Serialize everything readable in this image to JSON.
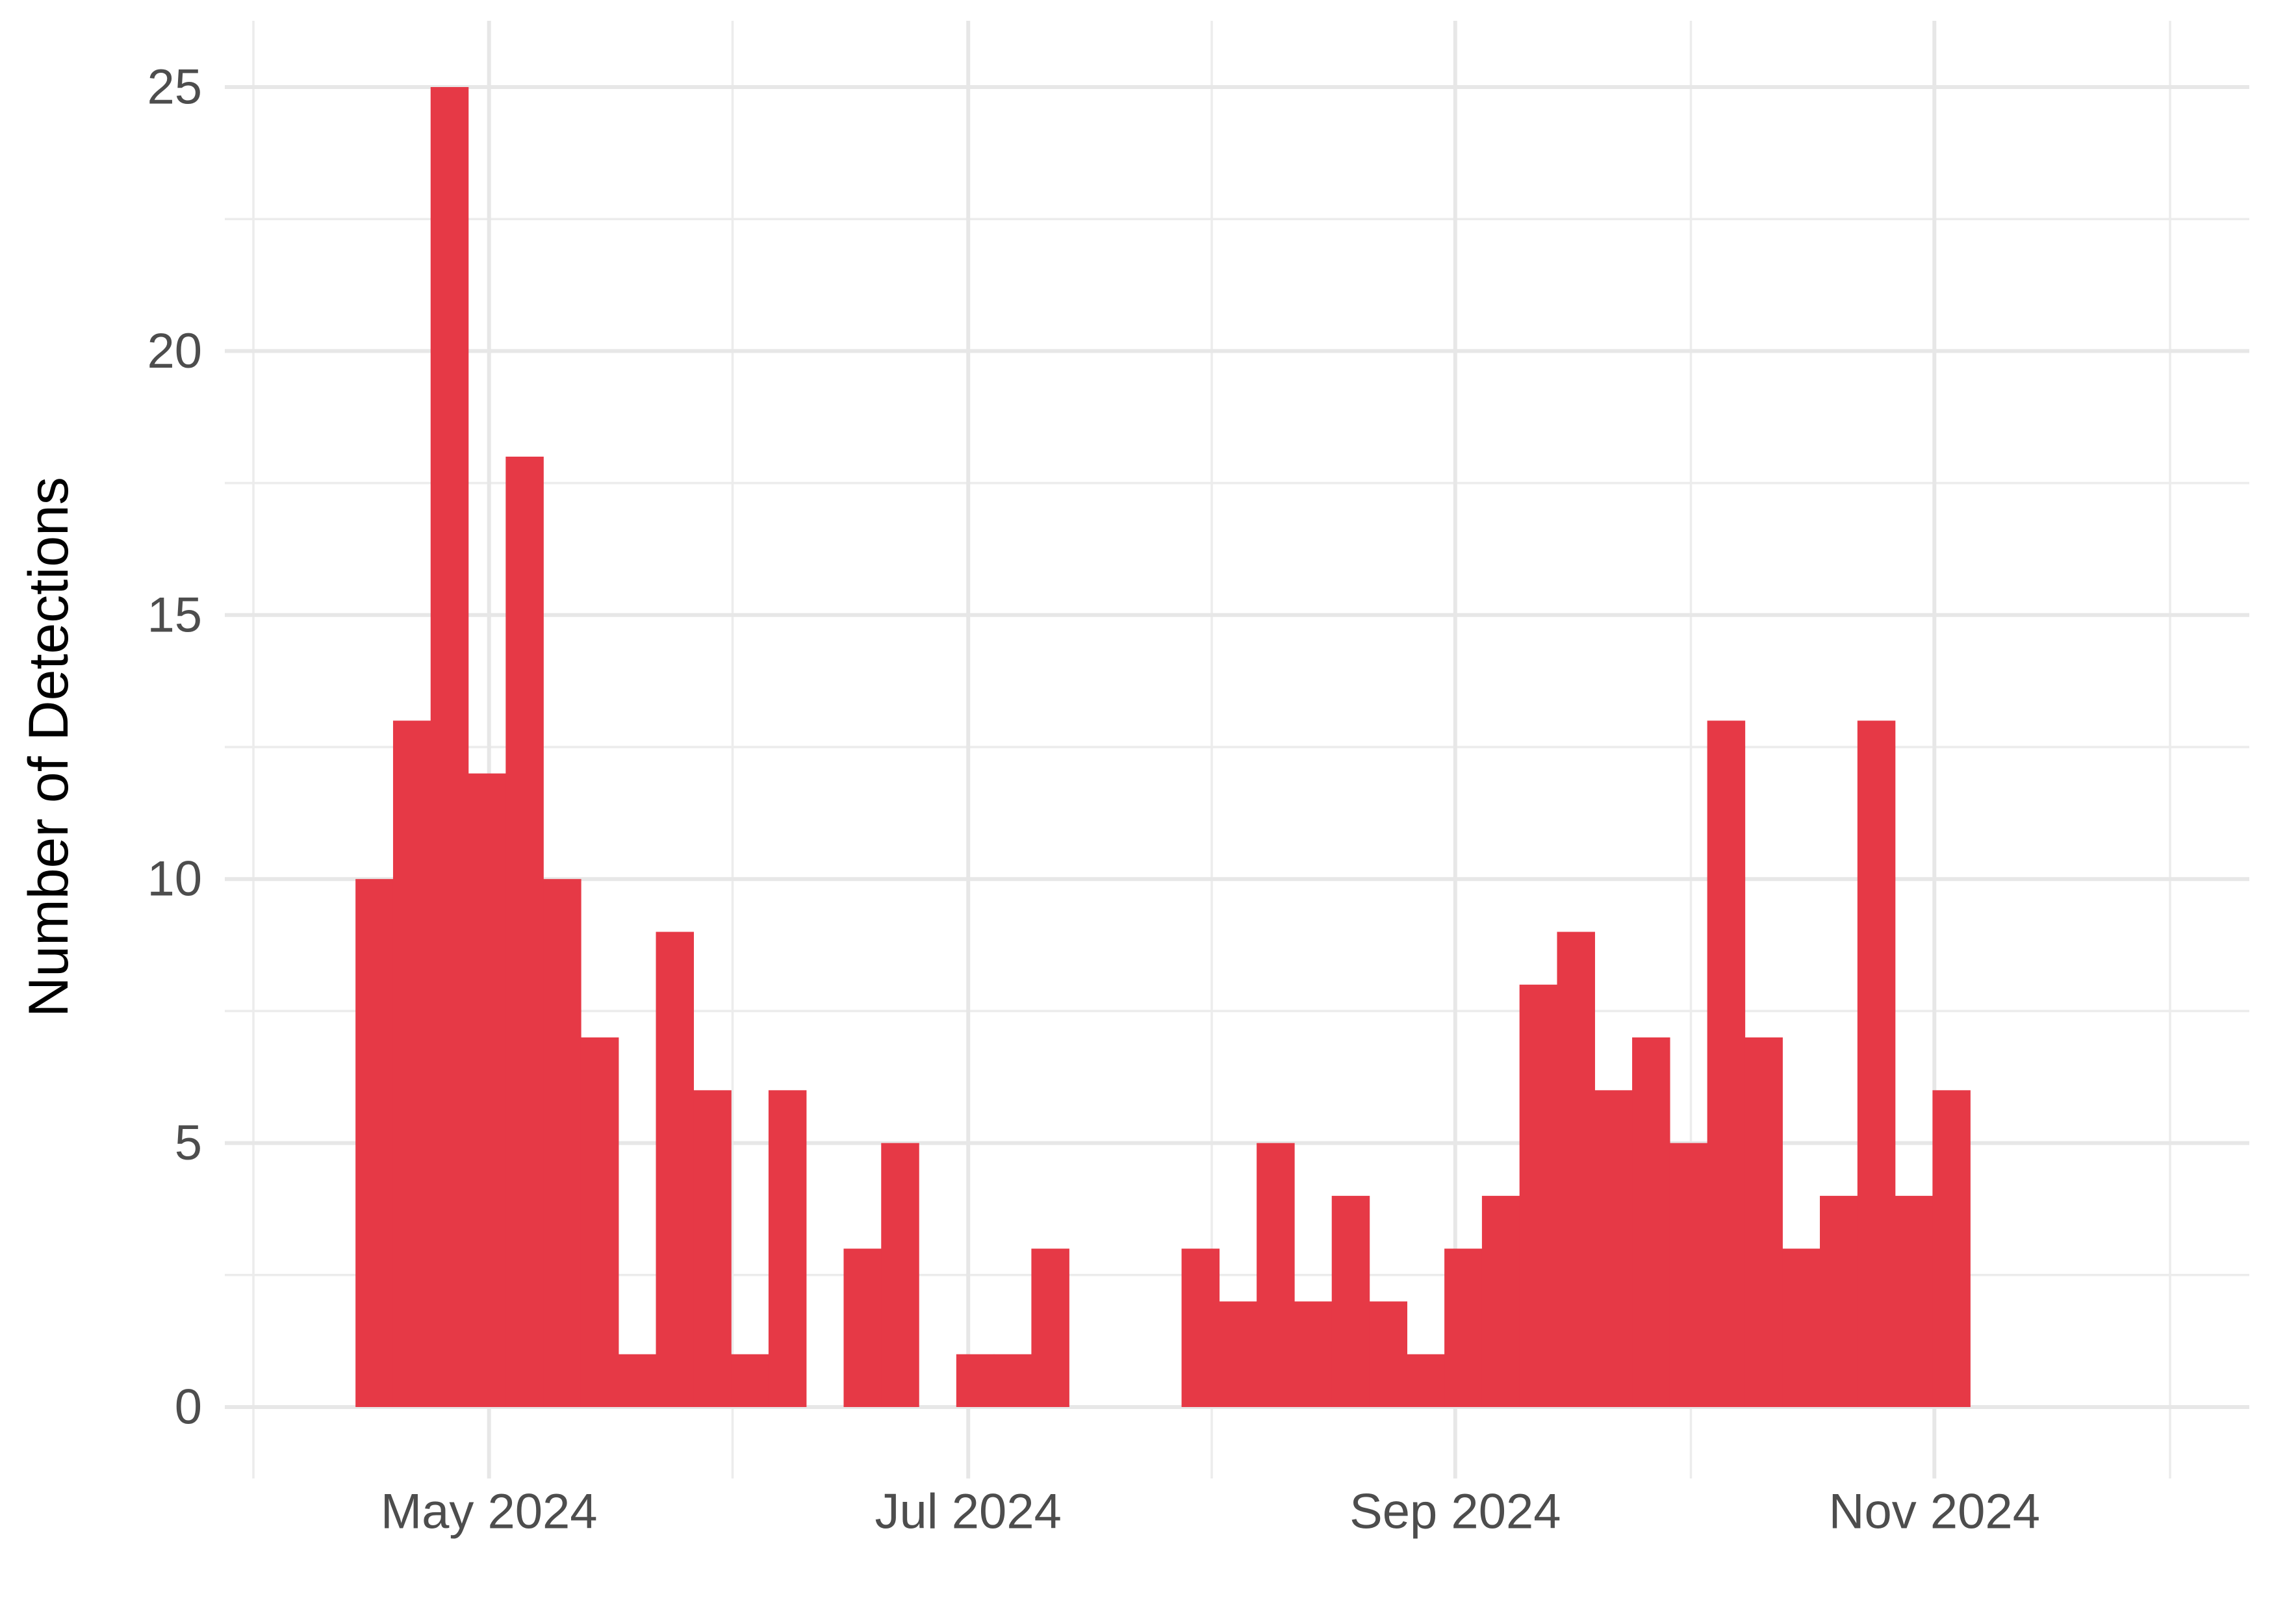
{
  "chart_data": {
    "type": "bar",
    "subtype": "histogram-of-dates",
    "title": "",
    "xlabel": "",
    "ylabel": "Number of Detections",
    "ylim": [
      0,
      25
    ],
    "y_major_ticks": [
      0,
      5,
      10,
      15,
      20,
      25
    ],
    "y_minor_gridlines": [
      2.5,
      7.5,
      12.5,
      17.5,
      22.5
    ],
    "grid": "on",
    "legend": "none",
    "x_ticks": [
      {
        "label": "",
        "day": 0,
        "major": false
      },
      {
        "label": "May 2024",
        "day": 30,
        "major": true
      },
      {
        "label": "",
        "day": 61,
        "major": false
      },
      {
        "label": "Jul 2024",
        "day": 91,
        "major": true
      },
      {
        "label": "",
        "day": 122,
        "major": false
      },
      {
        "label": "Sep 2024",
        "day": 153,
        "major": true
      },
      {
        "label": "",
        "day": 183,
        "major": false
      },
      {
        "label": "Nov 2024",
        "day": 214,
        "major": true
      },
      {
        "label": "",
        "day": 244,
        "major": false
      }
    ],
    "x_axis_day0_date": "2024-04-01",
    "bins": {
      "first_bin_start_day": 13,
      "bin_width_days": 4.78,
      "counts": [
        10,
        13,
        25,
        12,
        18,
        10,
        7,
        1,
        9,
        6,
        1,
        6,
        0,
        3,
        5,
        0,
        1,
        1,
        3,
        0,
        0,
        0,
        3,
        2,
        5,
        2,
        4,
        2,
        1,
        3,
        4,
        8,
        9,
        6,
        7,
        5,
        13,
        7,
        3,
        4,
        13,
        4,
        6
      ]
    }
  },
  "colors": {
    "bar_fill": "#e63946",
    "grid_major": "#e7e7e7",
    "grid_minor": "#ececec",
    "tick_label": "#4d4d4d",
    "axis_title": "#000000",
    "background": "#ffffff"
  }
}
